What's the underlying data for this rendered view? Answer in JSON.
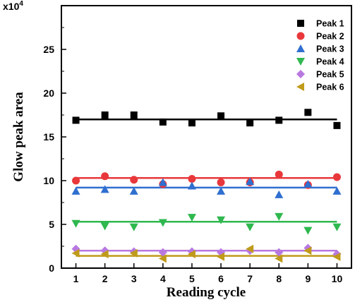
{
  "chart_data": {
    "type": "scatter",
    "xlabel": "Reading cycle",
    "ylabel": "Glow peak area",
    "y_multiplier": "x10",
    "y_multiplier_exp": "4",
    "xlim": [
      0.5,
      10.5
    ],
    "ylim": [
      0,
      30
    ],
    "x_ticks": [
      1,
      2,
      3,
      4,
      5,
      6,
      7,
      8,
      9,
      10
    ],
    "y_ticks": [
      0,
      5,
      10,
      15,
      20,
      25
    ],
    "grid": false,
    "legend_position": "top-right",
    "x": [
      1,
      2,
      3,
      4,
      5,
      6,
      7,
      8,
      9,
      10
    ],
    "series": [
      {
        "name": "Peak 1",
        "marker": "square",
        "color": "#000000",
        "fit": 17.0,
        "values": [
          16.9,
          17.5,
          17.5,
          16.7,
          16.6,
          17.4,
          16.6,
          16.9,
          17.8,
          16.3
        ]
      },
      {
        "name": "Peak 2",
        "marker": "circle",
        "color": "#e8383b",
        "fit": 10.3,
        "values": [
          10.0,
          10.5,
          10.1,
          9.6,
          10.2,
          9.8,
          9.8,
          10.7,
          9.5,
          10.4
        ]
      },
      {
        "name": "Peak 3",
        "marker": "triangle-up",
        "color": "#2f6fd0",
        "fit": 9.2,
        "values": [
          8.8,
          9.0,
          8.8,
          9.8,
          9.4,
          8.8,
          9.9,
          8.4,
          9.6,
          8.8
        ]
      },
      {
        "name": "Peak 4",
        "marker": "triangle-down",
        "color": "#2fb84f",
        "fit": 5.3,
        "values": [
          5.1,
          4.8,
          4.7,
          5.2,
          5.8,
          5.5,
          4.7,
          5.9,
          4.3,
          4.7
        ]
      },
      {
        "name": "Peak 5",
        "marker": "diamond",
        "color": "#b878e0",
        "fit": 2.0,
        "values": [
          2.2,
          2.0,
          1.9,
          1.8,
          1.9,
          1.8,
          2.0,
          1.8,
          2.3,
          1.6
        ]
      },
      {
        "name": "Peak 6",
        "marker": "triangle-left",
        "color": "#c09a1a",
        "fit": 1.4,
        "values": [
          1.7,
          1.6,
          1.7,
          1.1,
          1.6,
          1.3,
          2.2,
          1.1,
          2.0,
          1.3
        ]
      }
    ]
  }
}
